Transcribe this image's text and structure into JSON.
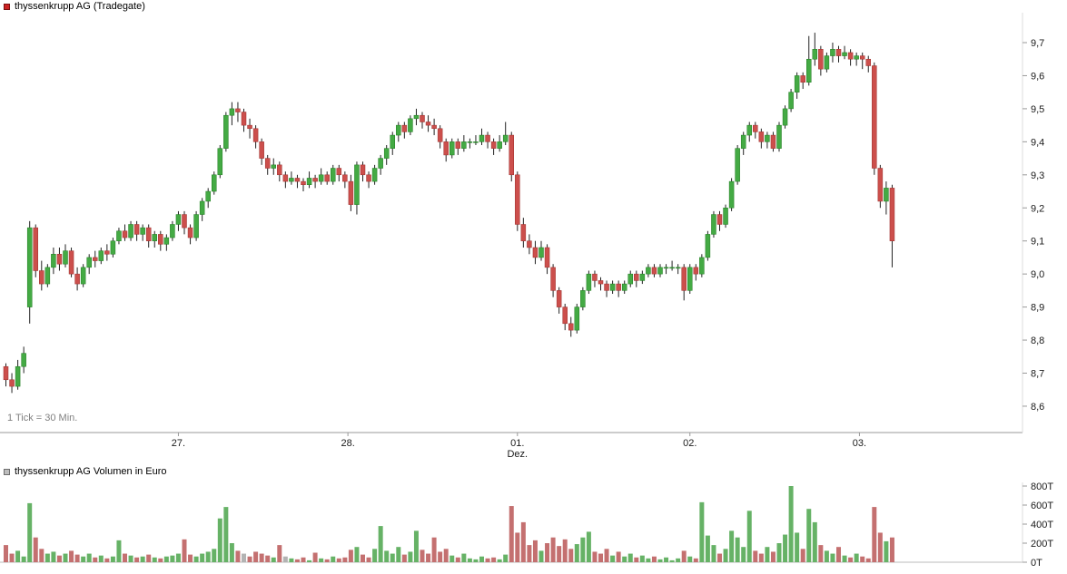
{
  "chart_data": [
    {
      "type": "candlestick",
      "title": "thyssenkrupp AG (Tradegate)",
      "footnote": "1 Tick = 30 Min.",
      "xlabel": "",
      "ylabel": "",
      "legend_position": "top-left",
      "grid": false,
      "x_axis": {
        "labels": [
          "27.",
          "28.",
          "01.",
          "02.",
          "03."
        ],
        "month_label": "Dez.",
        "month_label_under": "01.",
        "tick_indices": [
          29,
          57.5,
          86,
          115,
          143.5
        ]
      },
      "y_axis": {
        "ticks": [
          9.7,
          9.6,
          9.5,
          9.4,
          9.3,
          9.2,
          9.1,
          9.0,
          8.9,
          8.8,
          8.7,
          8.6
        ],
        "tick_labels": [
          "9,7",
          "9,6",
          "9,5",
          "9,4",
          "9,3",
          "9,2",
          "9,1",
          "9,0",
          "8,9",
          "8,8",
          "8,7",
          "8,6"
        ],
        "range": [
          8.54,
          9.79
        ]
      },
      "colors": {
        "up": "#44aa44",
        "up_border": "#1f7a1f",
        "down": "#cc4f4c",
        "down_border": "#9c2f2c",
        "wick": "#222222"
      },
      "candles": [
        [
          8.72,
          8.73,
          8.66,
          8.68
        ],
        [
          8.68,
          8.7,
          8.64,
          8.66
        ],
        [
          8.66,
          8.74,
          8.65,
          8.72
        ],
        [
          8.72,
          8.78,
          8.7,
          8.76
        ],
        [
          8.9,
          9.16,
          8.85,
          9.14
        ],
        [
          9.14,
          9.15,
          8.99,
          9.01
        ],
        [
          9.01,
          9.04,
          8.95,
          8.97
        ],
        [
          8.97,
          9.03,
          8.96,
          9.02
        ],
        [
          9.02,
          9.08,
          9.0,
          9.06
        ],
        [
          9.06,
          9.08,
          9.01,
          9.03
        ],
        [
          9.03,
          9.09,
          9.02,
          9.07
        ],
        [
          9.07,
          9.08,
          8.99,
          9.0
        ],
        [
          9.0,
          9.02,
          8.95,
          8.97
        ],
        [
          8.97,
          9.03,
          8.96,
          9.02
        ],
        [
          9.02,
          9.06,
          9.0,
          9.05
        ],
        [
          9.05,
          9.07,
          9.02,
          9.04
        ],
        [
          9.04,
          9.08,
          9.03,
          9.07
        ],
        [
          9.07,
          9.09,
          9.04,
          9.06
        ],
        [
          9.06,
          9.11,
          9.05,
          9.1
        ],
        [
          9.1,
          9.14,
          9.09,
          9.13
        ],
        [
          9.13,
          9.15,
          9.1,
          9.11
        ],
        [
          9.11,
          9.16,
          9.1,
          9.15
        ],
        [
          9.15,
          9.16,
          9.1,
          9.12
        ],
        [
          9.12,
          9.15,
          9.1,
          9.14
        ],
        [
          9.14,
          9.15,
          9.08,
          9.1
        ],
        [
          9.1,
          9.13,
          9.08,
          9.12
        ],
        [
          9.12,
          9.13,
          9.07,
          9.09
        ],
        [
          9.09,
          9.12,
          9.07,
          9.11
        ],
        [
          9.11,
          9.16,
          9.1,
          9.15
        ],
        [
          9.15,
          9.19,
          9.13,
          9.18
        ],
        [
          9.18,
          9.19,
          9.12,
          9.14
        ],
        [
          9.14,
          9.15,
          9.09,
          9.11
        ],
        [
          9.11,
          9.19,
          9.1,
          9.18
        ],
        [
          9.18,
          9.23,
          9.16,
          9.22
        ],
        [
          9.22,
          9.26,
          9.2,
          9.25
        ],
        [
          9.25,
          9.31,
          9.24,
          9.3
        ],
        [
          9.3,
          9.39,
          9.29,
          9.38
        ],
        [
          9.38,
          9.49,
          9.37,
          9.48
        ],
        [
          9.48,
          9.52,
          9.45,
          9.5
        ],
        [
          9.5,
          9.52,
          9.46,
          9.49
        ],
        [
          9.49,
          9.5,
          9.43,
          9.45
        ],
        [
          9.45,
          9.47,
          9.41,
          9.44
        ],
        [
          9.44,
          9.45,
          9.38,
          9.4
        ],
        [
          9.4,
          9.41,
          9.33,
          9.35
        ],
        [
          9.35,
          9.36,
          9.3,
          9.32
        ],
        [
          9.32,
          9.35,
          9.3,
          9.33
        ],
        [
          9.33,
          9.34,
          9.28,
          9.3
        ],
        [
          9.3,
          9.31,
          9.26,
          9.28
        ],
        [
          9.28,
          9.31,
          9.27,
          9.29
        ],
        [
          9.29,
          9.3,
          9.26,
          9.28
        ],
        [
          9.28,
          9.29,
          9.25,
          9.27
        ],
        [
          9.27,
          9.31,
          9.26,
          9.29
        ],
        [
          9.29,
          9.3,
          9.26,
          9.28
        ],
        [
          9.28,
          9.32,
          9.27,
          9.3
        ],
        [
          9.3,
          9.31,
          9.27,
          9.28
        ],
        [
          9.28,
          9.33,
          9.27,
          9.32
        ],
        [
          9.32,
          9.33,
          9.28,
          9.3
        ],
        [
          9.3,
          9.31,
          9.26,
          9.28
        ],
        [
          9.28,
          9.3,
          9.19,
          9.21
        ],
        [
          9.21,
          9.34,
          9.18,
          9.33
        ],
        [
          9.33,
          9.34,
          9.28,
          9.3
        ],
        [
          9.3,
          9.31,
          9.26,
          9.28
        ],
        [
          9.28,
          9.33,
          9.27,
          9.32
        ],
        [
          9.32,
          9.36,
          9.3,
          9.35
        ],
        [
          9.35,
          9.39,
          9.33,
          9.38
        ],
        [
          9.38,
          9.43,
          9.36,
          9.42
        ],
        [
          9.42,
          9.46,
          9.4,
          9.45
        ],
        [
          9.45,
          9.46,
          9.41,
          9.43
        ],
        [
          9.43,
          9.48,
          9.42,
          9.47
        ],
        [
          9.47,
          9.5,
          9.45,
          9.48
        ],
        [
          9.48,
          9.49,
          9.44,
          9.46
        ],
        [
          9.46,
          9.48,
          9.43,
          9.45
        ],
        [
          9.45,
          9.47,
          9.42,
          9.44
        ],
        [
          9.44,
          9.45,
          9.38,
          9.4
        ],
        [
          9.4,
          9.41,
          9.34,
          9.36
        ],
        [
          9.36,
          9.41,
          9.35,
          9.4
        ],
        [
          9.4,
          9.41,
          9.36,
          9.38
        ],
        [
          9.38,
          9.42,
          9.37,
          9.4
        ],
        [
          9.4,
          9.41,
          9.38,
          9.4
        ],
        [
          9.4,
          9.42,
          9.39,
          9.4
        ],
        [
          9.4,
          9.44,
          9.39,
          9.42
        ],
        [
          9.42,
          9.43,
          9.38,
          9.4
        ],
        [
          9.4,
          9.41,
          9.36,
          9.38
        ],
        [
          9.38,
          9.42,
          9.37,
          9.4
        ],
        [
          9.4,
          9.46,
          9.39,
          9.42
        ],
        [
          9.42,
          9.43,
          9.28,
          9.3
        ],
        [
          9.3,
          9.31,
          9.13,
          9.15
        ],
        [
          9.15,
          9.17,
          9.08,
          9.1
        ],
        [
          9.1,
          9.12,
          9.06,
          9.08
        ],
        [
          9.08,
          9.1,
          9.03,
          9.05
        ],
        [
          9.05,
          9.1,
          9.04,
          9.08
        ],
        [
          9.08,
          9.09,
          9.0,
          9.02
        ],
        [
          9.02,
          9.03,
          8.93,
          8.95
        ],
        [
          8.95,
          8.96,
          8.88,
          8.9
        ],
        [
          8.9,
          8.91,
          8.83,
          8.85
        ],
        [
          8.85,
          8.87,
          8.81,
          8.83
        ],
        [
          8.83,
          8.91,
          8.82,
          8.9
        ],
        [
          8.9,
          8.96,
          8.89,
          8.95
        ],
        [
          8.95,
          9.01,
          8.94,
          9.0
        ],
        [
          9.0,
          9.01,
          8.96,
          8.98
        ],
        [
          8.98,
          8.99,
          8.95,
          8.97
        ],
        [
          8.97,
          8.98,
          8.93,
          8.95
        ],
        [
          8.95,
          8.98,
          8.94,
          8.97
        ],
        [
          8.97,
          8.98,
          8.93,
          8.95
        ],
        [
          8.95,
          8.98,
          8.94,
          8.97
        ],
        [
          8.97,
          9.01,
          8.96,
          9.0
        ],
        [
          9.0,
          9.01,
          8.96,
          8.98
        ],
        [
          8.98,
          9.01,
          8.97,
          9.0
        ],
        [
          9.0,
          9.03,
          8.99,
          9.02
        ],
        [
          9.02,
          9.03,
          8.99,
          9.0
        ],
        [
          9.0,
          9.03,
          8.99,
          9.02
        ],
        [
          9.02,
          9.03,
          9.0,
          9.02
        ],
        [
          9.02,
          9.04,
          9.01,
          9.02
        ],
        [
          9.02,
          9.03,
          9.0,
          9.02
        ],
        [
          9.02,
          9.03,
          8.92,
          8.95
        ],
        [
          8.95,
          9.03,
          8.94,
          9.02
        ],
        [
          9.02,
          9.03,
          8.98,
          9.0
        ],
        [
          9.0,
          9.06,
          8.99,
          9.05
        ],
        [
          9.05,
          9.13,
          9.04,
          9.12
        ],
        [
          9.12,
          9.19,
          9.11,
          9.18
        ],
        [
          9.18,
          9.19,
          9.13,
          9.15
        ],
        [
          9.15,
          9.21,
          9.14,
          9.2
        ],
        [
          9.2,
          9.29,
          9.19,
          9.28
        ],
        [
          9.28,
          9.39,
          9.27,
          9.38
        ],
        [
          9.38,
          9.43,
          9.36,
          9.42
        ],
        [
          9.42,
          9.46,
          9.4,
          9.45
        ],
        [
          9.45,
          9.46,
          9.41,
          9.43
        ],
        [
          9.43,
          9.44,
          9.38,
          9.4
        ],
        [
          9.4,
          9.43,
          9.38,
          9.42
        ],
        [
          9.42,
          9.43,
          9.37,
          9.38
        ],
        [
          9.38,
          9.46,
          9.37,
          9.45
        ],
        [
          9.45,
          9.51,
          9.44,
          9.5
        ],
        [
          9.5,
          9.56,
          9.49,
          9.55
        ],
        [
          9.55,
          9.61,
          9.53,
          9.6
        ],
        [
          9.6,
          9.61,
          9.56,
          9.58
        ],
        [
          9.58,
          9.72,
          9.57,
          9.65
        ],
        [
          9.65,
          9.73,
          9.63,
          9.68
        ],
        [
          9.68,
          9.69,
          9.6,
          9.62
        ],
        [
          9.62,
          9.67,
          9.61,
          9.66
        ],
        [
          9.66,
          9.7,
          9.64,
          9.68
        ],
        [
          9.68,
          9.69,
          9.64,
          9.66
        ],
        [
          9.66,
          9.69,
          9.65,
          9.67
        ],
        [
          9.67,
          9.68,
          9.63,
          9.65
        ],
        [
          9.65,
          9.67,
          9.63,
          9.66
        ],
        [
          9.66,
          9.67,
          9.62,
          9.65
        ],
        [
          9.65,
          9.66,
          9.61,
          9.63
        ],
        [
          9.63,
          9.64,
          9.3,
          9.32
        ],
        [
          9.32,
          9.33,
          9.2,
          9.22
        ],
        [
          9.22,
          9.28,
          9.18,
          9.26
        ],
        [
          9.26,
          9.27,
          9.02,
          9.1
        ]
      ]
    },
    {
      "type": "bar",
      "title": "thyssenkrupp AG Volumen in Euro",
      "unit": "T",
      "xlabel": "",
      "ylabel": "",
      "y_axis": {
        "ticks": [
          800,
          600,
          400,
          200,
          0
        ],
        "tick_labels": [
          "800T",
          "600T",
          "400T",
          "200T",
          "0T"
        ],
        "range": [
          0,
          850
        ]
      },
      "colors": {
        "up": "#66b266",
        "down": "#c47070",
        "neutral": "#b3b3b3"
      },
      "gray_indices": [
        40,
        47
      ],
      "values": [
        180,
        90,
        120,
        60,
        620,
        260,
        140,
        90,
        110,
        70,
        90,
        120,
        80,
        60,
        90,
        50,
        70,
        40,
        60,
        230,
        90,
        70,
        50,
        60,
        80,
        50,
        40,
        60,
        70,
        90,
        240,
        80,
        60,
        90,
        110,
        140,
        460,
        580,
        200,
        120,
        90,
        60,
        110,
        90,
        70,
        50,
        180,
        60,
        40,
        30,
        50,
        20,
        100,
        40,
        30,
        60,
        40,
        50,
        130,
        160,
        80,
        50,
        140,
        380,
        120,
        90,
        160,
        80,
        110,
        330,
        130,
        90,
        260,
        110,
        140,
        70,
        50,
        90,
        40,
        30,
        60,
        40,
        50,
        30,
        80,
        590,
        310,
        420,
        180,
        230,
        120,
        200,
        260,
        170,
        240,
        140,
        190,
        260,
        320,
        110,
        90,
        140,
        70,
        110,
        60,
        90,
        50,
        70,
        40,
        60,
        30,
        50,
        20,
        40,
        120,
        60,
        40,
        630,
        280,
        180,
        90,
        140,
        330,
        260,
        160,
        540,
        120,
        90,
        160,
        110,
        200,
        290,
        800,
        310,
        140,
        560,
        420,
        180,
        120,
        90,
        160,
        70,
        50,
        90,
        60,
        40,
        580,
        310,
        220,
        260
      ]
    }
  ]
}
